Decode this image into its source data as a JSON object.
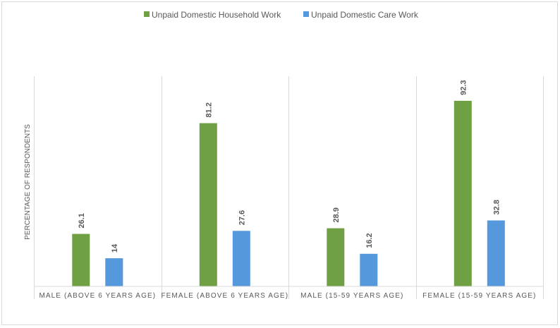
{
  "chart_data": {
    "type": "bar",
    "categories": [
      "MALE (ABOVE 6 YEARS AGE)",
      "FEMALE (ABOVE 6 YEARS AGE)",
      "MALE (15-59 YEARS AGE)",
      "FEMALE (15-59 YEARS AGE)"
    ],
    "series": [
      {
        "name": "Unpaid Domestic Household Work",
        "values": [
          26.1,
          81.2,
          28.9,
          92.3
        ],
        "color": "#70a044"
      },
      {
        "name": "Unpaid Domestic Care Work",
        "values": [
          14,
          27.6,
          16.2,
          32.8
        ],
        "color": "#5598dc"
      }
    ],
    "data_labels": [
      [
        "26.1",
        "81.2",
        "28.9",
        "92.3"
      ],
      [
        "14",
        "27.6",
        "16.2",
        "32.8"
      ]
    ],
    "title": "",
    "xlabel": "",
    "ylabel": "PERCENTAGE OF RESPONDENTS",
    "ylim": [
      0,
      100
    ],
    "grid": false,
    "category_separators": true,
    "legend_position": "top-center"
  }
}
